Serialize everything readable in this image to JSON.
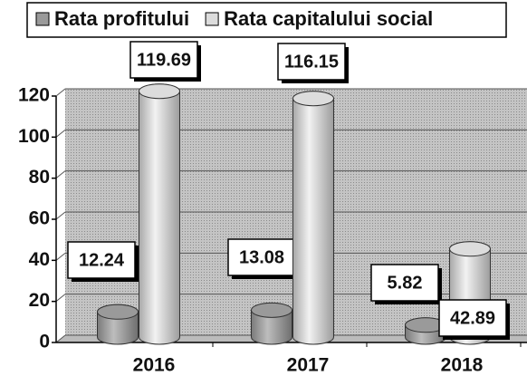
{
  "chart_data": {
    "type": "bar",
    "categories": [
      "2016",
      "2017",
      "2018"
    ],
    "series": [
      {
        "name": "Rata profitului",
        "color": "#9a9a9a",
        "values": [
          12.24,
          13.08,
          5.82
        ]
      },
      {
        "name": "Rata capitalului social",
        "color": "#dcdcdc",
        "values": [
          119.69,
          116.15,
          42.89
        ]
      }
    ],
    "ylim": [
      0,
      120
    ],
    "yticks": [
      0,
      20,
      40,
      60,
      80,
      100,
      120
    ],
    "grid": true,
    "legend": "top"
  }
}
